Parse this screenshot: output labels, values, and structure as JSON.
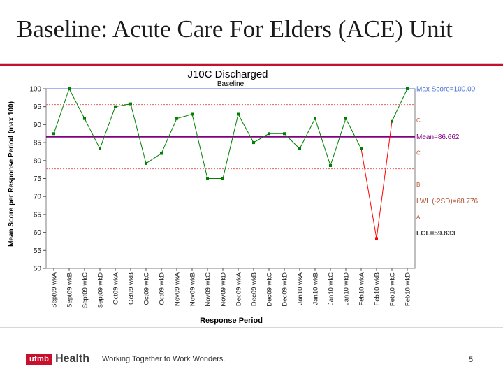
{
  "slide": {
    "title": "Baseline: Acute Care For Elders (ACE) Unit",
    "tagline": "Working Together to Work Wonders.",
    "page_number": "5",
    "logo_brand": "utmb",
    "logo_word": "Health"
  },
  "colors": {
    "accent": "#c8102e",
    "series": "#008000",
    "out_of_control": "#ff0000",
    "mean": "#800080",
    "max": "#4a6fd8",
    "zone_lines": "#e06666",
    "lwl": "#b05030",
    "lcl": "#404040"
  },
  "chart_data": {
    "type": "line",
    "title": "J10C Discharged",
    "subtitle": "Baseline",
    "xlabel": "Response Period",
    "ylabel": "Mean Score per Response Period (max 100)",
    "ylim": [
      50,
      100
    ],
    "yticks": [
      50,
      55,
      60,
      65,
      70,
      75,
      80,
      85,
      90,
      95,
      100
    ],
    "grid": false,
    "categories": [
      "Sept09 wkA",
      "Sept09 wkB",
      "Sept09 wkC",
      "Sept09 wkD",
      "Oct09 wkA",
      "Oct09 wkB",
      "Oct09 wkC",
      "Oct09 wkD",
      "Nov09 wkA",
      "Nov09 wkB",
      "Nov09 wkC",
      "Nov09 wkD",
      "Dec09 wkA",
      "Dec09 wkB",
      "Dec09 wkC",
      "Dec09 wkD",
      "Jan10 wkA",
      "Jan10 wkB",
      "Jan10 wkC",
      "Jan10 wkD",
      "Feb10 wkA",
      "Feb10 wkB",
      "Feb10 wkC",
      "Feb10 wkD"
    ],
    "values": [
      87.5,
      100,
      91.7,
      83.3,
      95,
      95.8,
      79.2,
      82,
      91.7,
      92.9,
      75,
      75,
      92.9,
      85,
      87.5,
      87.5,
      83.3,
      91.7,
      78.6,
      91.7,
      83.3,
      58.3,
      90.9,
      100
    ],
    "out_of_control_index": 21,
    "reference_lines": [
      {
        "label": "Max Score=100.00",
        "value": 100,
        "style": "solid",
        "kind": "max"
      },
      {
        "label": "Mean=86.662",
        "value": 86.662,
        "style": "solid",
        "kind": "mean"
      },
      {
        "label": "LWL (-2SD)=68.776",
        "value": 68.776,
        "style": "dashed",
        "kind": "lwl"
      },
      {
        "label": "LCL=59.833",
        "value": 59.833,
        "style": "dashed",
        "kind": "lcl"
      }
    ],
    "zone_lines": [
      95.6,
      77.7
    ],
    "zone_labels": [
      {
        "text": "C",
        "value": 91.2
      },
      {
        "text": "C",
        "value": 82.2
      },
      {
        "text": "B",
        "value": 73.3
      },
      {
        "text": "A",
        "value": 64.3
      }
    ]
  }
}
